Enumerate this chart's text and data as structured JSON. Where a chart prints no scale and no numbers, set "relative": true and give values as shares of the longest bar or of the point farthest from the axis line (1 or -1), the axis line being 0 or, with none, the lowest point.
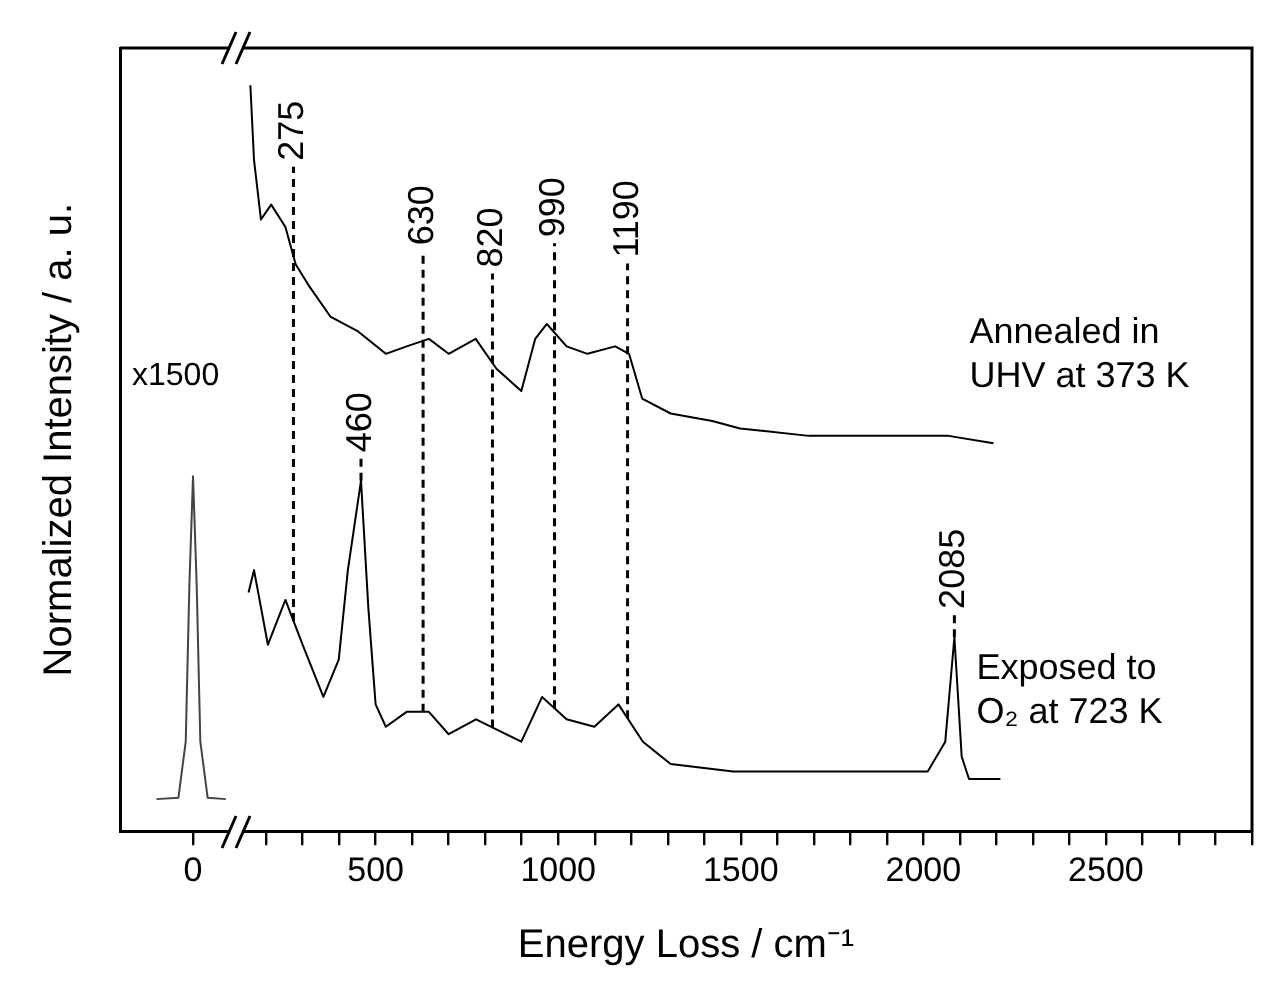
{
  "chart_data": {
    "type": "line",
    "xlabel": "Energy Loss / cm⁻¹",
    "ylabel": "Normalized Intensity / a. u.",
    "relative": true,
    "xlim": [
      -200,
      2900
    ],
    "xticks": [
      0,
      {
        "value": 200,
        "label": null
      },
      {
        "value": 300,
        "label": null
      },
      {
        "value": 400,
        "label": null
      },
      500,
      {
        "value": 600,
        "label": null
      },
      {
        "value": 700,
        "label": null
      },
      {
        "value": 800,
        "label": null
      },
      {
        "value": 900,
        "label": null
      },
      1000,
      {
        "value": 1100,
        "label": null
      },
      {
        "value": 1200,
        "label": null
      },
      {
        "value": 1300,
        "label": null
      },
      {
        "value": 1400,
        "label": null
      },
      1500,
      {
        "value": 1600,
        "label": null
      },
      {
        "value": 1700,
        "label": null
      },
      {
        "value": 1800,
        "label": null
      },
      {
        "value": 1900,
        "label": null
      },
      2000,
      {
        "value": 2100,
        "label": null
      },
      {
        "value": 2200,
        "label": null
      },
      {
        "value": 2300,
        "label": null
      },
      {
        "value": 2400,
        "label": null
      },
      2500,
      {
        "value": 2600,
        "label": null
      },
      {
        "value": 2700,
        "label": null
      },
      {
        "value": 2800,
        "label": null
      },
      {
        "value": 2900,
        "label": null
      }
    ],
    "grid": false,
    "legend": false,
    "marker": "none",
    "line_style": "solid",
    "series": [
      {
        "name": "Annealed in UHV at 373 K",
        "color": "#000000",
        "x": [
          157,
          167,
          186,
          214,
          253,
          281,
          319,
          376,
          452,
          528,
          585,
          646,
          700,
          774,
          831,
          899,
          937,
          969,
          1023,
          1080,
          1156,
          1194,
          1230,
          1308,
          1422,
          1498,
          1687,
          1879,
          2069,
          2192
        ],
        "values": [
          1.0,
          0.9,
          0.82,
          0.84,
          0.81,
          0.76,
          0.73,
          0.69,
          0.67,
          0.64,
          0.65,
          0.66,
          0.64,
          0.66,
          0.62,
          0.59,
          0.66,
          0.68,
          0.65,
          0.64,
          0.65,
          0.64,
          0.58,
          0.56,
          0.55,
          0.54,
          0.53,
          0.53,
          0.53,
          0.52
        ]
      },
      {
        "name": "Exposed to O₂ at 723 K",
        "color": "#000000",
        "x": [
          152,
          167,
          205,
          253,
          300,
          357,
          399,
          424,
          460,
          480,
          500,
          528,
          585,
          646,
          700,
          775,
          899,
          956,
          1023,
          1099,
          1165,
          1232,
          1308,
          1479,
          1688,
          1879,
          2012,
          2060,
          2085,
          2105,
          2125,
          2211
        ],
        "values": [
          0.32,
          0.35,
          0.25,
          0.31,
          0.25,
          0.18,
          0.23,
          0.35,
          0.47,
          0.3,
          0.17,
          0.14,
          0.16,
          0.16,
          0.13,
          0.15,
          0.12,
          0.18,
          0.15,
          0.14,
          0.17,
          0.12,
          0.09,
          0.08,
          0.08,
          0.08,
          0.08,
          0.12,
          0.26,
          0.1,
          0.07,
          0.07
        ]
      },
      {
        "color": "#444444",
        "x": [
          -100,
          -40,
          -20,
          -10,
          0,
          10,
          20,
          40,
          90
        ],
        "values": [
          0.043,
          0.045,
          0.12,
          0.33,
          0.476,
          0.33,
          0.12,
          0.045,
          0.043
        ]
      }
    ],
    "ref_lines": [
      {
        "axis": "x",
        "value": 275,
        "label": "275",
        "line_style": "dashed"
      },
      {
        "axis": "x",
        "value": 460,
        "label": "460",
        "line_style": "dashed"
      },
      {
        "axis": "x",
        "value": 630,
        "label": "630",
        "line_style": "dashed"
      },
      {
        "axis": "x",
        "value": 820,
        "label": "820",
        "line_style": "dashed"
      },
      {
        "axis": "x",
        "value": 990,
        "label": "990",
        "line_style": "dashed"
      },
      {
        "axis": "x",
        "value": 1190,
        "label": "1190",
        "line_style": "dashed"
      },
      {
        "axis": "x",
        "value": 2085,
        "label": "2085",
        "line_style": "dashed"
      }
    ],
    "annotations": [
      "x1500"
    ]
  }
}
